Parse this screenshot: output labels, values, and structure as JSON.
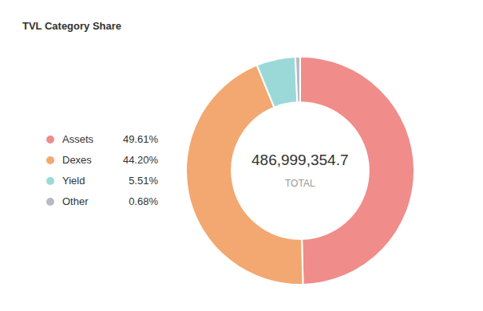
{
  "chart_data": {
    "type": "pie",
    "hole": true,
    "title": "TVL Category Share",
    "categories": [
      "Assets",
      "Dexes",
      "Yield",
      "Other"
    ],
    "values": [
      49.61,
      44.2,
      5.51,
      0.68
    ],
    "value_labels": [
      "49.61%",
      "44.20%",
      "5.51%",
      "0.68%"
    ],
    "colors": [
      "#f08c8a",
      "#f2a870",
      "#9bd9d9",
      "#b9b9c2"
    ],
    "total": {
      "value": 486999354.7,
      "label": "486,999,354.7"
    },
    "total_caption": "TOTAL",
    "legend": "left",
    "data_labels": false
  }
}
